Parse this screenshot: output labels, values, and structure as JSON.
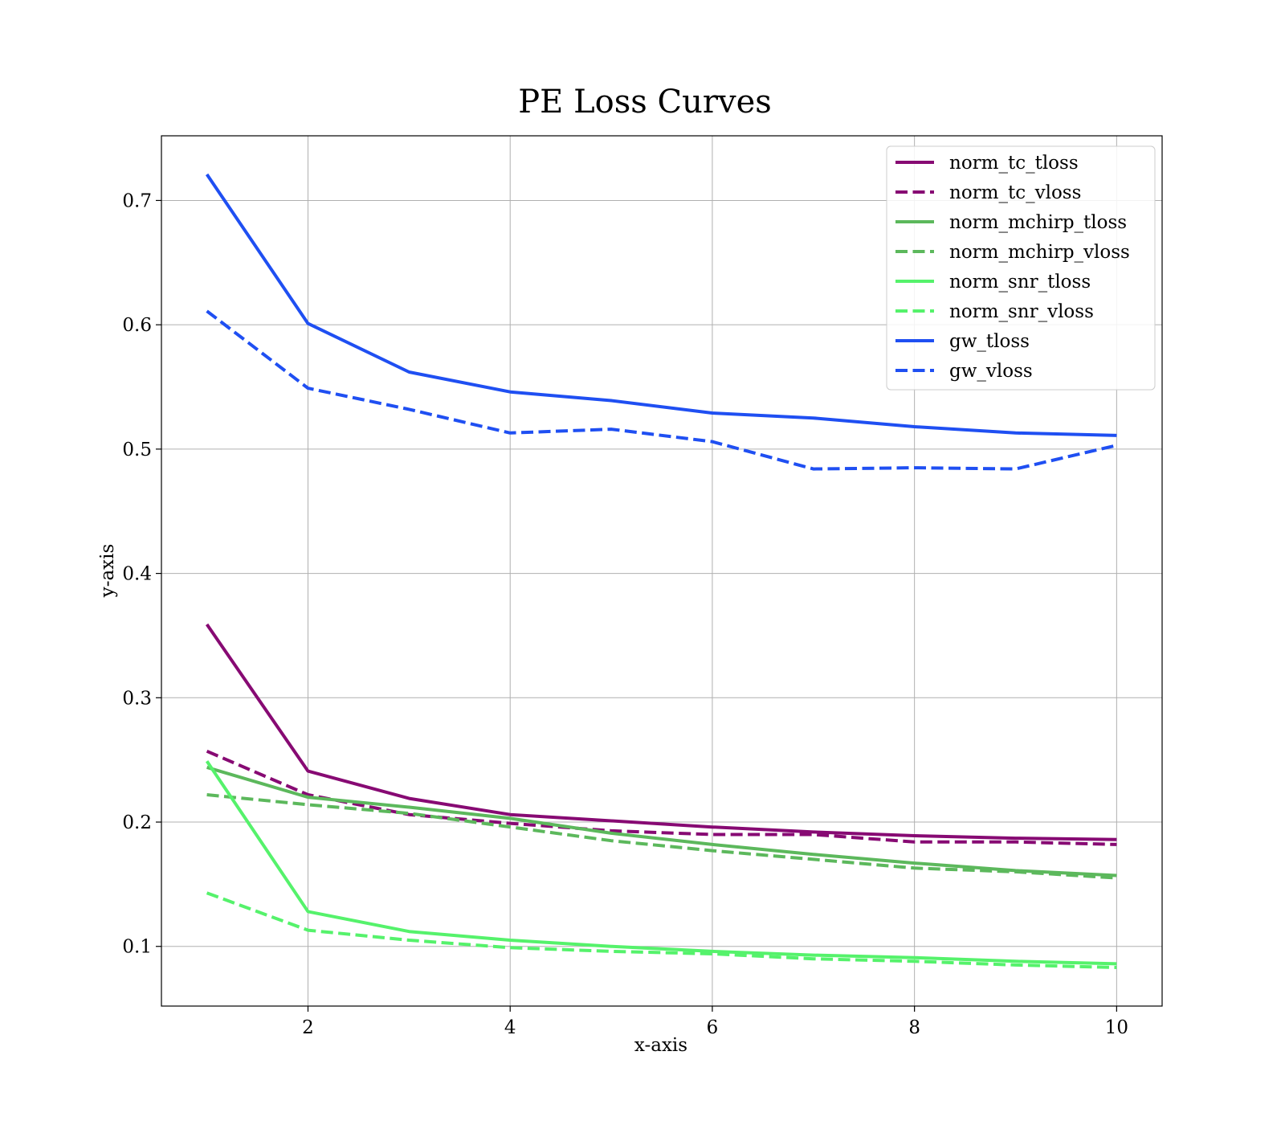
{
  "chart_data": {
    "type": "line",
    "title": "PE Loss Curves",
    "xlabel": "x-axis",
    "ylabel": "y-axis",
    "xlim": [
      0.55,
      10.45
    ],
    "ylim": [
      0.052,
      0.752
    ],
    "xticks": [
      2,
      4,
      6,
      8,
      10
    ],
    "yticks": [
      0.1,
      0.2,
      0.3,
      0.4,
      0.5,
      0.6,
      0.7
    ],
    "grid": true,
    "legend_position": "top-right",
    "x": [
      1,
      2,
      3,
      4,
      5,
      6,
      7,
      8,
      9,
      10
    ],
    "series": [
      {
        "name": "norm_tc_tloss",
        "color": "#870a73",
        "dash": "solid",
        "values": [
          0.359,
          0.241,
          0.219,
          0.206,
          0.201,
          0.196,
          0.192,
          0.189,
          0.187,
          0.186
        ]
      },
      {
        "name": "norm_tc_vloss",
        "color": "#870a73",
        "dash": "dashed",
        "values": [
          0.257,
          0.222,
          0.206,
          0.199,
          0.193,
          0.19,
          0.19,
          0.184,
          0.184,
          0.182
        ]
      },
      {
        "name": "norm_mchirp_tloss",
        "color": "#5cb85c",
        "dash": "solid",
        "values": [
          0.244,
          0.22,
          0.212,
          0.203,
          0.191,
          0.182,
          0.174,
          0.167,
          0.161,
          0.157
        ]
      },
      {
        "name": "norm_mchirp_vloss",
        "color": "#5cb85c",
        "dash": "dashed",
        "values": [
          0.222,
          0.214,
          0.207,
          0.196,
          0.185,
          0.177,
          0.17,
          0.163,
          0.16,
          0.155
        ]
      },
      {
        "name": "norm_snr_tloss",
        "color": "#55f26b",
        "dash": "solid",
        "values": [
          0.249,
          0.128,
          0.112,
          0.105,
          0.1,
          0.096,
          0.093,
          0.091,
          0.088,
          0.086
        ]
      },
      {
        "name": "norm_snr_vloss",
        "color": "#55f26b",
        "dash": "dashed",
        "values": [
          0.143,
          0.113,
          0.105,
          0.099,
          0.096,
          0.094,
          0.09,
          0.088,
          0.085,
          0.083
        ]
      },
      {
        "name": "gw_tloss",
        "color": "#1f4ff2",
        "dash": "solid",
        "values": [
          0.721,
          0.601,
          0.562,
          0.546,
          0.539,
          0.529,
          0.525,
          0.518,
          0.513,
          0.511
        ]
      },
      {
        "name": "gw_vloss",
        "color": "#1f4ff2",
        "dash": "dashed",
        "values": [
          0.611,
          0.549,
          0.532,
          0.513,
          0.516,
          0.506,
          0.484,
          0.485,
          0.484,
          0.503
        ]
      }
    ]
  }
}
